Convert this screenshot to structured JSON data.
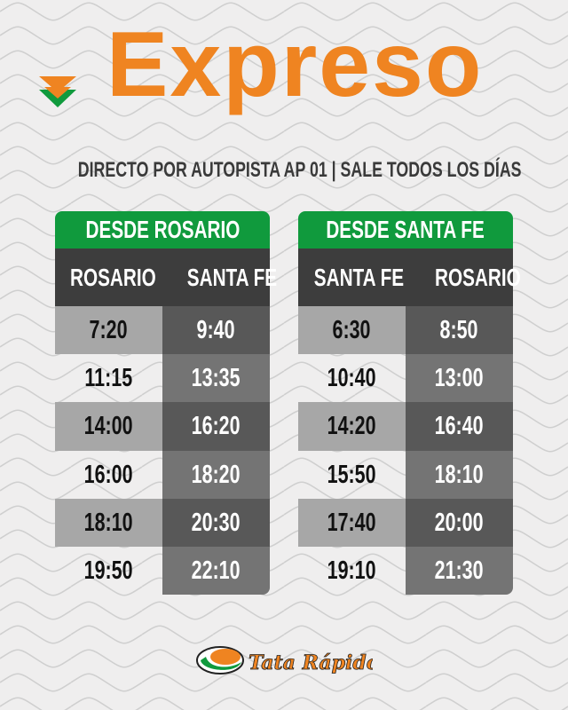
{
  "title": "Expreso",
  "subtitle": "DIRECTO POR AUTOPISTA  AP 01 | SALE TODOS LOS DÍAS",
  "colors": {
    "orange": "#ef8421",
    "green": "#109a3d",
    "dark": "#3d3d3d",
    "background": "#efeeee"
  },
  "tables": [
    {
      "title": "DESDE ROSARIO",
      "headers": [
        "ROSARIO",
        "SANTA FE"
      ],
      "rows": [
        [
          "7:20",
          "9:40"
        ],
        [
          "11:15",
          "13:35"
        ],
        [
          "14:00",
          "16:20"
        ],
        [
          "16:00",
          "18:20"
        ],
        [
          "18:10",
          "20:30"
        ],
        [
          "19:50",
          "22:10"
        ]
      ]
    },
    {
      "title": "DESDE SANTA FE",
      "headers": [
        "SANTA FE",
        "ROSARIO"
      ],
      "rows": [
        [
          "6:30",
          "8:50"
        ],
        [
          "10:40",
          "13:00"
        ],
        [
          "14:20",
          "16:40"
        ],
        [
          "15:50",
          "18:10"
        ],
        [
          "17:40",
          "20:00"
        ],
        [
          "19:10",
          "21:30"
        ]
      ]
    }
  ],
  "logo": {
    "text": "Tata Rápido"
  }
}
